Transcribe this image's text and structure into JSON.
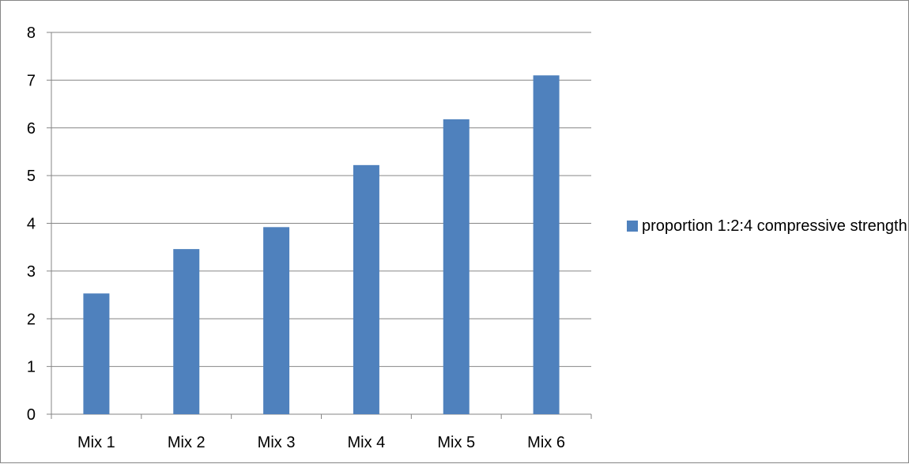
{
  "chart_data": {
    "type": "bar",
    "categories": [
      "Mix 1",
      "Mix 2",
      "Mix 3",
      "Mix 4",
      "Mix 5",
      "Mix 6"
    ],
    "series": [
      {
        "name": "proportion 1:2:4 compressive strength",
        "values": [
          2.53,
          3.46,
          3.92,
          5.22,
          6.18,
          7.1
        ]
      }
    ],
    "ylim": [
      0,
      8
    ],
    "yticks": [
      0,
      1,
      2,
      3,
      4,
      5,
      6,
      7,
      8
    ],
    "grid": true,
    "legend_position": "right",
    "bar_color": "#4F81BD",
    "title": "",
    "xlabel": "",
    "ylabel": ""
  }
}
